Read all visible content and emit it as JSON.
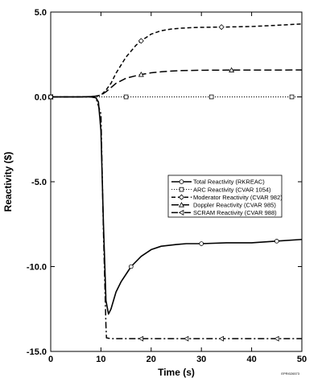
{
  "chart_data": {
    "type": "line",
    "xlabel": "Time (s)",
    "ylabel": "Reactivity ($)",
    "xlim": [
      0,
      50
    ],
    "ylim": [
      -15,
      5
    ],
    "x_ticks": [
      0,
      10,
      20,
      30,
      40,
      50
    ],
    "x_tick_labels": [
      "0",
      "10",
      "20",
      "30",
      "40",
      "50"
    ],
    "y_ticks": [
      5,
      0,
      -5,
      -10,
      -15
    ],
    "y_tick_labels": [
      "5.0",
      "0.0",
      "-5.0",
      "-10.0",
      "-15.0"
    ],
    "grid": false,
    "legend_position": "center-right",
    "corner_id": "EPRI026573",
    "series": [
      {
        "name": "Total Reactivity (RKREAC)",
        "line_style": "solid",
        "marker": "circle",
        "x": [
          0,
          2,
          5,
          7,
          8,
          9,
          9.5,
          10,
          10.5,
          11,
          11.5,
          12,
          13,
          14,
          15,
          16,
          18,
          20,
          22,
          25,
          27,
          30,
          35,
          40,
          45,
          50
        ],
        "y": [
          0,
          0,
          0,
          0,
          0,
          -0.05,
          -0.3,
          -2.0,
          -7.5,
          -12.0,
          -12.8,
          -12.5,
          -11.5,
          -10.9,
          -10.45,
          -10.0,
          -9.4,
          -9.0,
          -8.8,
          -8.7,
          -8.65,
          -8.65,
          -8.6,
          -8.6,
          -8.5,
          -8.4
        ],
        "marker_x": [
          0,
          16,
          30,
          45
        ]
      },
      {
        "name": "ARC Reactivity (CVAR 1054)",
        "line_style": "dotted",
        "marker": "square",
        "x": [
          0,
          50
        ],
        "y": [
          0,
          0
        ],
        "marker_x": [
          0,
          15,
          32,
          48
        ]
      },
      {
        "name": "Moderator Reactivity (CVAR 982)",
        "line_style": "dashed",
        "marker": "diamond",
        "x": [
          0,
          5,
          8,
          9,
          10,
          11,
          12,
          13,
          15,
          17,
          18,
          20,
          22,
          24,
          26,
          28,
          30,
          35,
          40,
          45,
          50
        ],
        "y": [
          0,
          0,
          0.02,
          0.05,
          0.1,
          0.4,
          0.8,
          1.4,
          2.35,
          3.05,
          3.3,
          3.7,
          3.9,
          4.0,
          4.05,
          4.08,
          4.1,
          4.12,
          4.15,
          4.22,
          4.3
        ],
        "marker_x": [
          0,
          18,
          34
        ]
      },
      {
        "name": "Doppler Reactivity (CVAR 985)",
        "line_style": "long-dash",
        "marker": "triangle",
        "x": [
          0,
          5,
          8,
          9,
          10,
          11,
          12,
          13,
          15,
          17,
          18,
          20,
          22,
          24,
          26,
          30,
          35,
          40,
          45,
          50
        ],
        "y": [
          0,
          0,
          0.02,
          0.05,
          0.1,
          0.3,
          0.55,
          0.8,
          1.1,
          1.25,
          1.32,
          1.42,
          1.48,
          1.52,
          1.55,
          1.57,
          1.58,
          1.58,
          1.58,
          1.59
        ],
        "marker_x": [
          0,
          18,
          36
        ]
      },
      {
        "name": "SCRAM Reactivity (CVAR 988)",
        "line_style": "dash-dot",
        "marker": "left-triangle",
        "x": [
          0,
          5,
          8,
          9,
          10,
          10.5,
          11,
          11.1,
          12,
          20,
          30,
          40,
          50
        ],
        "y": [
          0,
          0,
          0,
          -0.05,
          -1.0,
          -8.0,
          -13.5,
          -14.2,
          -14.25,
          -14.25,
          -14.25,
          -14.25,
          -14.25
        ],
        "marker_x": [
          0,
          18,
          27,
          34,
          45
        ]
      }
    ]
  }
}
